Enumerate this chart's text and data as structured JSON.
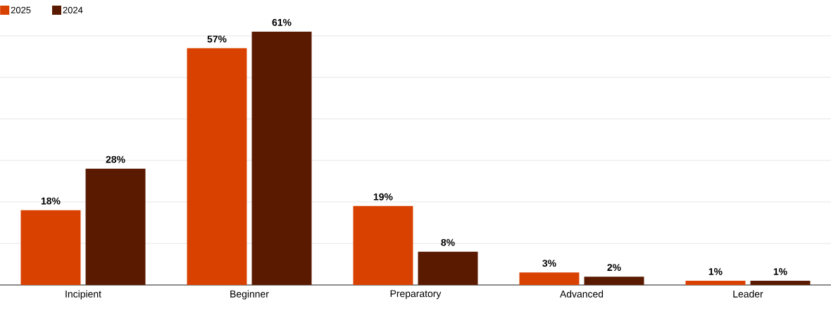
{
  "chart_data": {
    "type": "bar",
    "categories": [
      "Incipient",
      "Beginner",
      "Preparatory",
      "Advanced",
      "Leader"
    ],
    "series": [
      {
        "name": "2025",
        "color": "#d94100",
        "values": [
          18,
          57,
          19,
          3,
          1
        ],
        "value_labels": [
          "18%",
          "57%",
          "19%",
          "3%",
          "1%"
        ]
      },
      {
        "name": "2024",
        "color": "#5a1a00",
        "values": [
          28,
          61,
          8,
          2,
          1
        ],
        "value_labels": [
          "28%",
          "61%",
          "8%",
          "2%",
          "1%"
        ]
      }
    ],
    "yticks": [
      {
        "value": 0,
        "label": null
      },
      {
        "value": 10,
        "label": null
      },
      {
        "value": 20,
        "label": null
      },
      {
        "value": 30,
        "label": null
      },
      {
        "value": 40,
        "label": null
      },
      {
        "value": 50,
        "label": null
      },
      {
        "value": 60,
        "label": null
      }
    ],
    "grid": "y",
    "legend": "top left",
    "tick_labels": "x"
  }
}
